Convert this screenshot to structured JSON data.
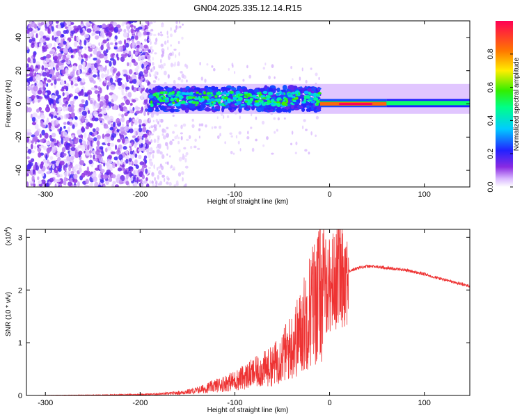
{
  "title": "GN04.2025.335.12.14.R15",
  "chart_data": [
    {
      "type": "heatmap",
      "xlabel": "Height of straight line (km)",
      "ylabel": "Frequency (Hz)",
      "xlim": [
        -320,
        148
      ],
      "ylim": [
        -50,
        50
      ],
      "xticks": [
        -300,
        -200,
        -100,
        0,
        100
      ],
      "yticks": [
        -40,
        -20,
        0,
        20,
        40
      ],
      "colorbar": {
        "label": "Normalized spectral amplitude",
        "range": [
          0,
          1
        ],
        "ticks": [
          "0.0",
          "0.2",
          "0.4",
          "0.6",
          "0.8"
        ],
        "tick_values": [
          0.0,
          0.2,
          0.4,
          0.6,
          0.8
        ]
      },
      "regions": [
        {
          "name": "broadband noise",
          "x_range": [
            -320,
            -190
          ],
          "freq_range": [
            -50,
            50
          ],
          "amplitude_range": [
            0.02,
            0.2
          ]
        },
        {
          "name": "scattered speckle",
          "x_range": [
            -190,
            -150
          ],
          "freq_range": [
            -50,
            50
          ],
          "amplitude_range": [
            0.0,
            0.05
          ]
        },
        {
          "name": "band near 0 Hz",
          "x_range": [
            -190,
            -10
          ],
          "freq_range": [
            -4,
            10
          ],
          "amplitude_range": [
            0.3,
            0.6
          ]
        },
        {
          "name": "strong narrow band",
          "x_range": [
            -10,
            60
          ],
          "freq_range": [
            -1,
            1
          ],
          "amplitude_range": [
            0.7,
            1.0
          ]
        },
        {
          "name": "steady band",
          "x_range": [
            60,
            148
          ],
          "freq_range": [
            -2,
            3
          ],
          "amplitude_range": [
            0.4,
            0.6
          ]
        }
      ]
    },
    {
      "type": "line",
      "xlabel": "Height of straight line (km)",
      "ylabel": "SNR (10 * v/v)",
      "y_multiplier": "(x10",
      "y_multiplier_exp": "4",
      "y_multiplier_close": ")",
      "xlim": [
        -320,
        148
      ],
      "ylim": [
        0,
        3.15
      ],
      "xticks": [
        -300,
        -200,
        -100,
        0,
        100
      ],
      "yticks": [
        0,
        1,
        2,
        3
      ],
      "series": [
        {
          "name": "SNR",
          "color": "#ee3333",
          "x": [
            -320,
            -280,
            -240,
            -200,
            -180,
            -160,
            -140,
            -120,
            -100,
            -80,
            -60,
            -50,
            -40,
            -30,
            -20,
            -10,
            0,
            10,
            20,
            30,
            40,
            50,
            60,
            80,
            100,
            120,
            148
          ],
          "y": [
            0.0,
            0.005,
            0.01,
            0.02,
            0.03,
            0.05,
            0.1,
            0.2,
            0.3,
            0.45,
            0.6,
            0.8,
            1.0,
            1.3,
            1.8,
            2.1,
            2.1,
            2.3,
            2.35,
            2.42,
            2.45,
            2.44,
            2.42,
            2.38,
            2.3,
            2.2,
            2.07
          ]
        }
      ]
    }
  ]
}
